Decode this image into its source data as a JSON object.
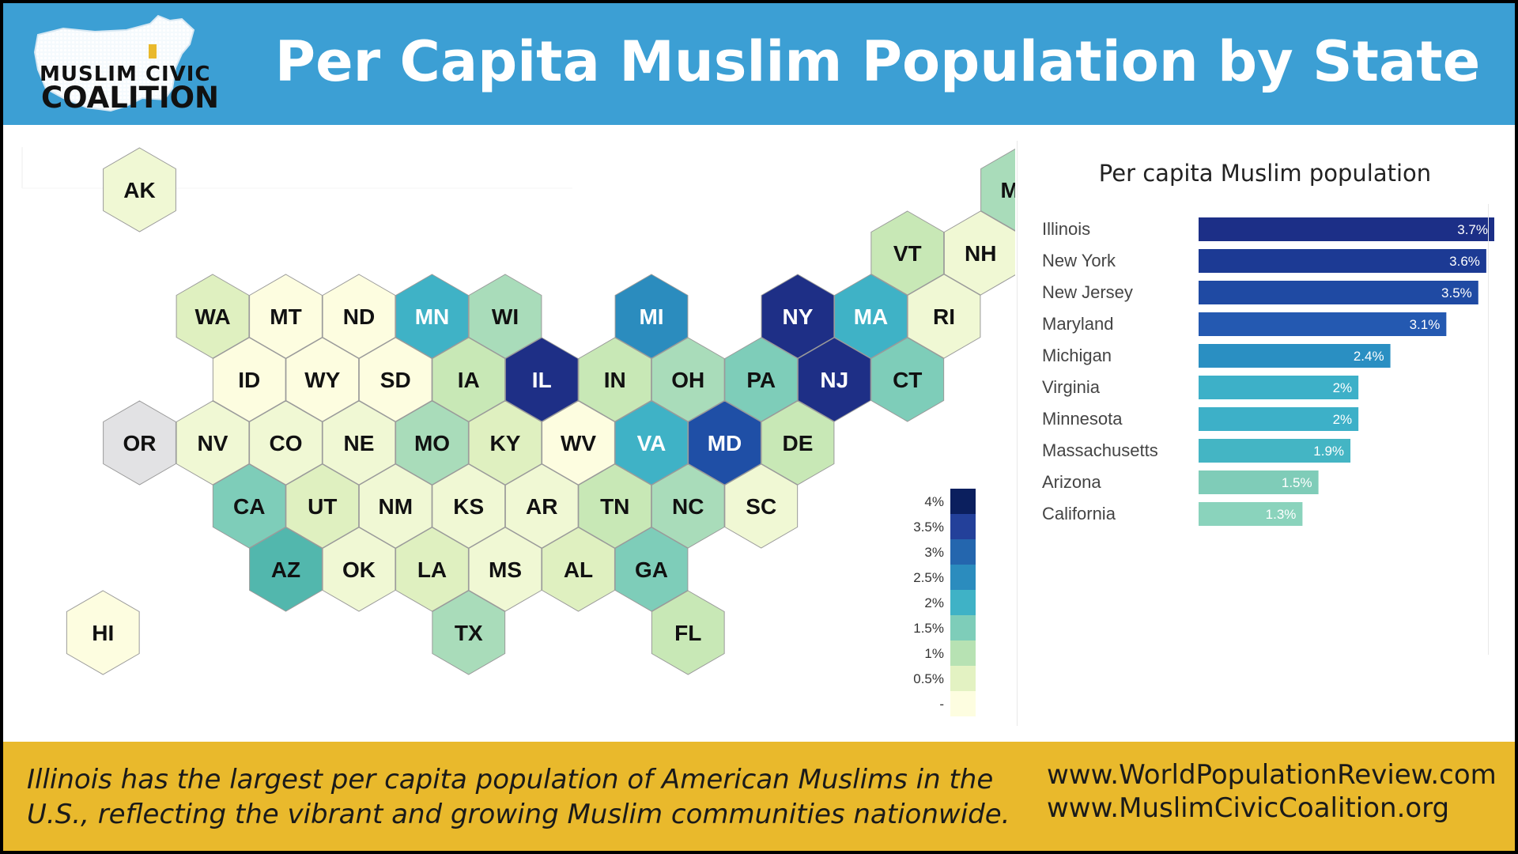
{
  "header": {
    "title": "Per Capita Muslim Population by State"
  },
  "logo": {
    "line1": "MUSLIM CIVIC",
    "line2": "COALITION"
  },
  "footer": {
    "caption_line1": "Illinois has the largest per capita population of American Muslims in the",
    "caption_line2": "U.S., reflecting the vibrant and growing Muslim communities nationwide.",
    "url_1": "www.WorldPopulationReview.com",
    "url_2": "www.MuslimCivicCoalition.org"
  },
  "colors": {
    "header_bg": "#3c9fd4",
    "footer_bg": "#e9b92c",
    "no_data": "#e2e2e4"
  },
  "chart_data": [
    {
      "type": "heatmap",
      "subtype": "hex-tile-map",
      "legend": {
        "labels": [
          "4%",
          "3.5%",
          "3%",
          "2.5%",
          "2%",
          "1.5%",
          "1%",
          "0.5%",
          "-"
        ],
        "colors": [
          "#0b1f5e",
          "#23409a",
          "#2466ae",
          "#2b8cbe",
          "#3fb2c6",
          "#7ecdb9",
          "#b7e2b3",
          "#e3f2c2",
          "#fdfde0"
        ]
      },
      "states": [
        {
          "code": "AK",
          "row": 0,
          "col": 1,
          "value": 0.4
        },
        {
          "code": "ME",
          "row": 0,
          "col": 13,
          "value": 1.1
        },
        {
          "code": "VT",
          "row": 1,
          "col": 11,
          "value": 0.8
        },
        {
          "code": "NH",
          "row": 1,
          "col": 12,
          "value": 0.4
        },
        {
          "code": "WA",
          "row": 2,
          "col": 2,
          "value": 0.6
        },
        {
          "code": "MT",
          "row": 2,
          "col": 3,
          "value": 0.2
        },
        {
          "code": "ND",
          "row": 2,
          "col": 4,
          "value": 0.3
        },
        {
          "code": "MN",
          "row": 2,
          "col": 5,
          "value": 2.0
        },
        {
          "code": "WI",
          "row": 2,
          "col": 6,
          "value": 1.0
        },
        {
          "code": "MI",
          "row": 2,
          "col": 8,
          "value": 2.4
        },
        {
          "code": "NY",
          "row": 2,
          "col": 10,
          "value": 3.6
        },
        {
          "code": "MA",
          "row": 2,
          "col": 11,
          "value": 1.9
        },
        {
          "code": "RI",
          "row": 2,
          "col": 12,
          "value": 0.5
        },
        {
          "code": "ID",
          "row": 3,
          "col": 2,
          "value": 0.3
        },
        {
          "code": "WY",
          "row": 3,
          "col": 3,
          "value": 0.2
        },
        {
          "code": "SD",
          "row": 3,
          "col": 4,
          "value": 0.3
        },
        {
          "code": "IA",
          "row": 3,
          "col": 5,
          "value": 0.8
        },
        {
          "code": "IL",
          "row": 3,
          "col": 6,
          "value": 3.7
        },
        {
          "code": "IN",
          "row": 3,
          "col": 7,
          "value": 0.8
        },
        {
          "code": "OH",
          "row": 3,
          "col": 8,
          "value": 1.0
        },
        {
          "code": "PA",
          "row": 3,
          "col": 9,
          "value": 1.2
        },
        {
          "code": "NJ",
          "row": 3,
          "col": 10,
          "value": 3.5
        },
        {
          "code": "CT",
          "row": 3,
          "col": 11,
          "value": 1.2
        },
        {
          "code": "OR",
          "row": 4,
          "col": 1,
          "value": null
        },
        {
          "code": "NV",
          "row": 4,
          "col": 2,
          "value": 0.5
        },
        {
          "code": "CO",
          "row": 4,
          "col": 3,
          "value": 0.5
        },
        {
          "code": "NE",
          "row": 4,
          "col": 4,
          "value": 0.4
        },
        {
          "code": "MO",
          "row": 4,
          "col": 5,
          "value": 1.0
        },
        {
          "code": "KY",
          "row": 4,
          "col": 6,
          "value": 0.6
        },
        {
          "code": "WV",
          "row": 4,
          "col": 7,
          "value": 0.3
        },
        {
          "code": "VA",
          "row": 4,
          "col": 8,
          "value": 2.0
        },
        {
          "code": "MD",
          "row": 4,
          "col": 9,
          "value": 3.1
        },
        {
          "code": "DE",
          "row": 4,
          "col": 10,
          "value": 0.8
        },
        {
          "code": "CA",
          "row": 5,
          "col": 2,
          "value": 1.3
        },
        {
          "code": "UT",
          "row": 5,
          "col": 3,
          "value": 0.7
        },
        {
          "code": "NM",
          "row": 5,
          "col": 4,
          "value": 0.5
        },
        {
          "code": "KS",
          "row": 5,
          "col": 5,
          "value": 0.5
        },
        {
          "code": "AR",
          "row": 5,
          "col": 6,
          "value": 0.4
        },
        {
          "code": "TN",
          "row": 5,
          "col": 7,
          "value": 0.8
        },
        {
          "code": "NC",
          "row": 5,
          "col": 8,
          "value": 1.1
        },
        {
          "code": "SC",
          "row": 5,
          "col": 9,
          "value": 0.4
        },
        {
          "code": "AZ",
          "row": 6,
          "col": 3,
          "value": 1.5
        },
        {
          "code": "OK",
          "row": 6,
          "col": 4,
          "value": 0.5
        },
        {
          "code": "LA",
          "row": 6,
          "col": 5,
          "value": 0.7
        },
        {
          "code": "MS",
          "row": 6,
          "col": 6,
          "value": 0.4
        },
        {
          "code": "AL",
          "row": 6,
          "col": 7,
          "value": 0.6
        },
        {
          "code": "GA",
          "row": 6,
          "col": 8,
          "value": 1.2
        },
        {
          "code": "HI",
          "row": 7,
          "col": 0,
          "value": 0.3
        },
        {
          "code": "TX",
          "row": 7,
          "col": 5,
          "value": 1.1
        },
        {
          "code": "FL",
          "row": 7,
          "col": 8,
          "value": 0.8
        }
      ]
    },
    {
      "type": "bar",
      "orientation": "horizontal",
      "title": "Per capita Muslim population",
      "categories": [
        "Illinois",
        "New York",
        "New Jersey",
        "Maryland",
        "Michigan",
        "Virginia",
        "Minnesota",
        "Massachusetts",
        "Arizona",
        "California"
      ],
      "values": [
        3.7,
        3.6,
        3.5,
        3.1,
        2.4,
        2.0,
        2.0,
        1.9,
        1.5,
        1.3
      ],
      "value_labels": [
        "3.7%",
        "3.6%",
        "3.5%",
        "3.1%",
        "2.4%",
        "2%",
        "2%",
        "1.9%",
        "1.5%",
        "1.3%"
      ],
      "xlim": [
        0,
        3.7
      ]
    }
  ]
}
